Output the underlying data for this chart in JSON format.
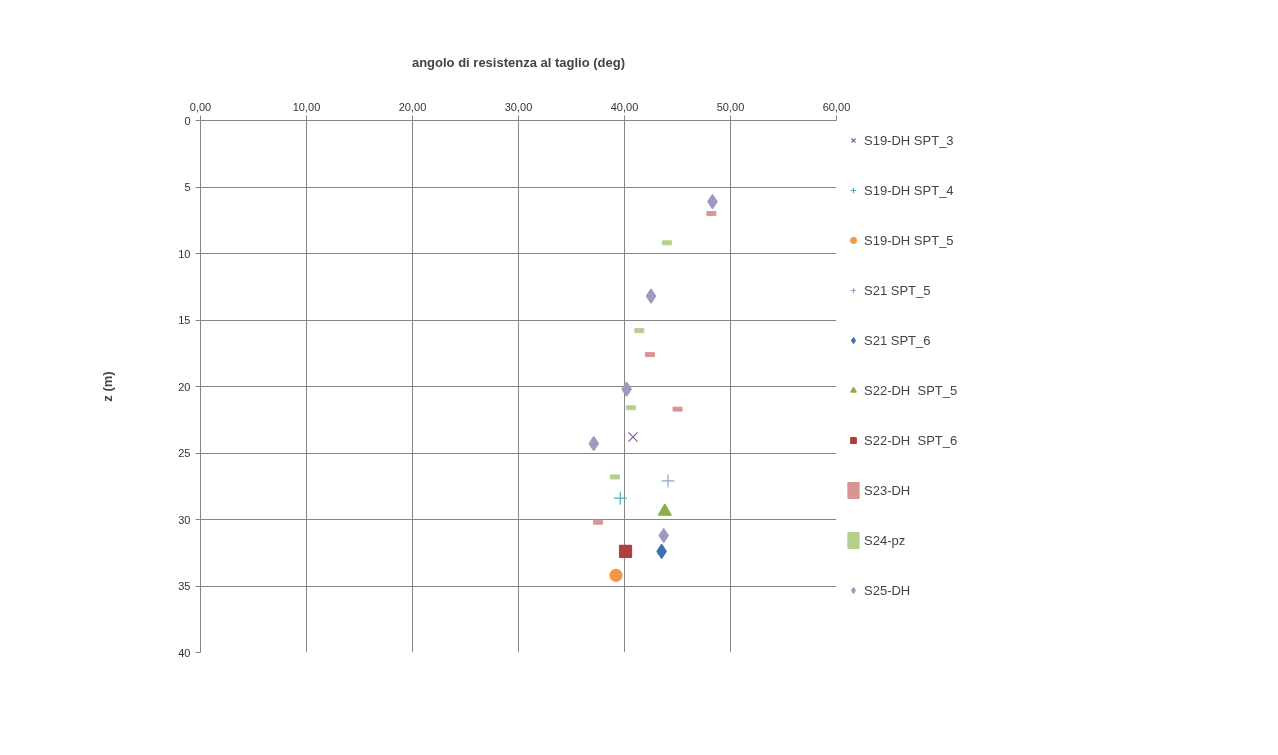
{
  "chart_data": {
    "type": "scatter",
    "xlabel": "angolo di resistenza al taglio (deg)",
    "ylabel": "z (m)",
    "xlim": [
      0,
      60
    ],
    "ylim": [
      40,
      0
    ],
    "xticks": [
      {
        "value": 0,
        "label": "0,00"
      },
      {
        "value": 10,
        "label": "10,00"
      },
      {
        "value": 20,
        "label": "20,00"
      },
      {
        "value": 30,
        "label": "30,00"
      },
      {
        "value": 40,
        "label": "40,00"
      },
      {
        "value": 50,
        "label": "50,00"
      },
      {
        "value": 60,
        "label": "60,00"
      }
    ],
    "yticks": [
      0,
      5,
      10,
      15,
      20,
      25,
      30,
      35,
      40
    ],
    "grid": true,
    "legend": "right",
    "series": [
      {
        "name": "S19-DH SPT_3",
        "color": "#7f5fa0",
        "marker": "x",
        "x": [
          40.8
        ],
        "values": [
          23.8
        ]
      },
      {
        "name": "S19-DH SPT_4",
        "color": "#4bacc6",
        "marker": "cross",
        "x": [
          39.6
        ],
        "values": [
          28.4
        ]
      },
      {
        "name": "S19-DH SPT_5",
        "color": "#f79646",
        "marker": "circle",
        "x": [
          39.2
        ],
        "values": [
          34.2
        ]
      },
      {
        "name": "S21 SPT_5",
        "color": "#8fa5cc",
        "marker": "cross",
        "x": [
          44.1
        ],
        "values": [
          27.1
        ]
      },
      {
        "name": "S21 SPT_6",
        "color": "#3c6fb0",
        "marker": "diamond",
        "x": [
          43.5
        ],
        "values": [
          32.4
        ]
      },
      {
        "name": "S22-DH  SPT_5",
        "color": "#8cad4a",
        "marker": "triangle",
        "x": [
          43.8
        ],
        "values": [
          29.4
        ]
      },
      {
        "name": "S22-DH  SPT_6",
        "color": "#b04040",
        "marker": "square",
        "x": [
          40.1
        ],
        "values": [
          32.4
        ]
      },
      {
        "name": "S23-DH",
        "color": "#d99594",
        "marker": "square",
        "x": [
          48.2,
          42.4,
          45.0,
          37.5
        ],
        "values": [
          7.0,
          17.6,
          21.7,
          30.2
        ]
      },
      {
        "name": "S24-pz",
        "color": "#b7cf8e",
        "marker": "square",
        "x": [
          44.0,
          41.4,
          40.6,
          39.1
        ],
        "values": [
          9.2,
          15.8,
          21.6,
          26.8
        ]
      },
      {
        "name": "S25-DH",
        "color": "#a497c1",
        "marker": "diamond",
        "x": [
          48.3,
          42.5,
          40.2,
          37.1,
          43.7
        ],
        "values": [
          6.1,
          13.2,
          20.2,
          24.3,
          31.2
        ]
      }
    ]
  }
}
